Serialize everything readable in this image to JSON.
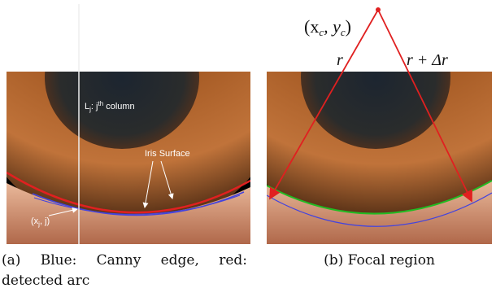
{
  "panels": [
    {
      "column_label": {
        "base": "L",
        "sub": "j",
        "mid": ": j",
        "sup": "th",
        "rest": " column"
      },
      "annotation": "Iris Surface",
      "point_label": {
        "open": "(x",
        "sub": "j",
        "rest": ", j)"
      },
      "caption": "(a) Blue: Canny edge, red: detected arc"
    },
    {
      "center_label": {
        "open": "(x",
        "sub1": "c",
        "mid": ", y",
        "sub2": "c",
        "close": ")"
      },
      "radius_label": "r",
      "radius_delta_label": "r + Δr",
      "caption": "(b) Focal region"
    }
  ]
}
